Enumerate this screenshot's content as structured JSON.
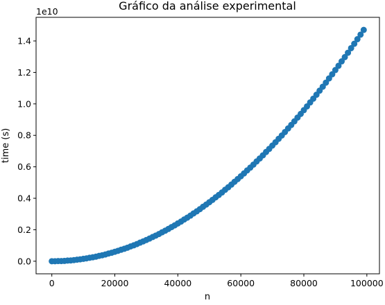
{
  "chart_data": {
    "type": "scatter",
    "title": "Gráfico da análise experimental",
    "xlabel": "n",
    "ylabel": "time (s)",
    "y_offset_label": "1e10",
    "xlim": [
      -5000,
      104000
    ],
    "ylim": [
      -0.08,
      1.55
    ],
    "x_ticks": [
      0,
      20000,
      40000,
      60000,
      80000,
      100000
    ],
    "x_tick_labels": [
      "0",
      "20000",
      "40000",
      "60000",
      "80000",
      "100000"
    ],
    "y_ticks": [
      0.0,
      0.2,
      0.4,
      0.6,
      0.8,
      1.0,
      1.2,
      1.4
    ],
    "y_tick_labels": [
      "0.0",
      "0.2",
      "0.4",
      "0.6",
      "0.8",
      "1.0",
      "1.2",
      "1.4"
    ],
    "grid": false,
    "marker_color": "#1f77b4",
    "series": [
      {
        "x": [
          0,
          1000,
          2000,
          3000,
          4000,
          5000,
          6000,
          7000,
          8000,
          9000,
          10000,
          11000,
          12000,
          13000,
          14000,
          15000,
          16000,
          17000,
          18000,
          19000,
          20000,
          21000,
          22000,
          23000,
          24000,
          25000,
          26000,
          27000,
          28000,
          29000,
          30000,
          31000,
          32000,
          33000,
          34000,
          35000,
          36000,
          37000,
          38000,
          39000,
          40000,
          41000,
          42000,
          43000,
          44000,
          45000,
          46000,
          47000,
          48000,
          49000,
          50000,
          51000,
          52000,
          53000,
          54000,
          55000,
          56000,
          57000,
          58000,
          59000,
          60000,
          61000,
          62000,
          63000,
          64000,
          65000,
          66000,
          67000,
          68000,
          69000,
          70000,
          71000,
          72000,
          73000,
          74000,
          75000,
          76000,
          77000,
          78000,
          79000,
          80000,
          81000,
          82000,
          83000,
          84000,
          85000,
          86000,
          87000,
          88000,
          89000,
          90000,
          91000,
          92000,
          93000,
          94000,
          95000,
          96000,
          97000,
          98000,
          99000
        ],
        "y": [
          0.0,
          0.0,
          0.001,
          0.001,
          0.002,
          0.004,
          0.005,
          0.007,
          0.01,
          0.012,
          0.015,
          0.018,
          0.022,
          0.025,
          0.029,
          0.034,
          0.038,
          0.043,
          0.049,
          0.054,
          0.06,
          0.066,
          0.073,
          0.079,
          0.086,
          0.094,
          0.101,
          0.109,
          0.118,
          0.126,
          0.135,
          0.144,
          0.154,
          0.163,
          0.173,
          0.184,
          0.194,
          0.205,
          0.217,
          0.228,
          0.24,
          0.252,
          0.265,
          0.277,
          0.29,
          0.304,
          0.317,
          0.331,
          0.346,
          0.36,
          0.375,
          0.39,
          0.406,
          0.421,
          0.437,
          0.454,
          0.47,
          0.487,
          0.505,
          0.522,
          0.54,
          0.558,
          0.577,
          0.595,
          0.614,
          0.634,
          0.653,
          0.673,
          0.694,
          0.714,
          0.735,
          0.756,
          0.778,
          0.799,
          0.821,
          0.844,
          0.866,
          0.889,
          0.913,
          0.936,
          0.96,
          0.984,
          1.009,
          1.033,
          1.058,
          1.084,
          1.109,
          1.135,
          1.162,
          1.188,
          1.215,
          1.242,
          1.27,
          1.297,
          1.325,
          1.354,
          1.382,
          1.411,
          1.44,
          1.47
        ]
      }
    ]
  }
}
